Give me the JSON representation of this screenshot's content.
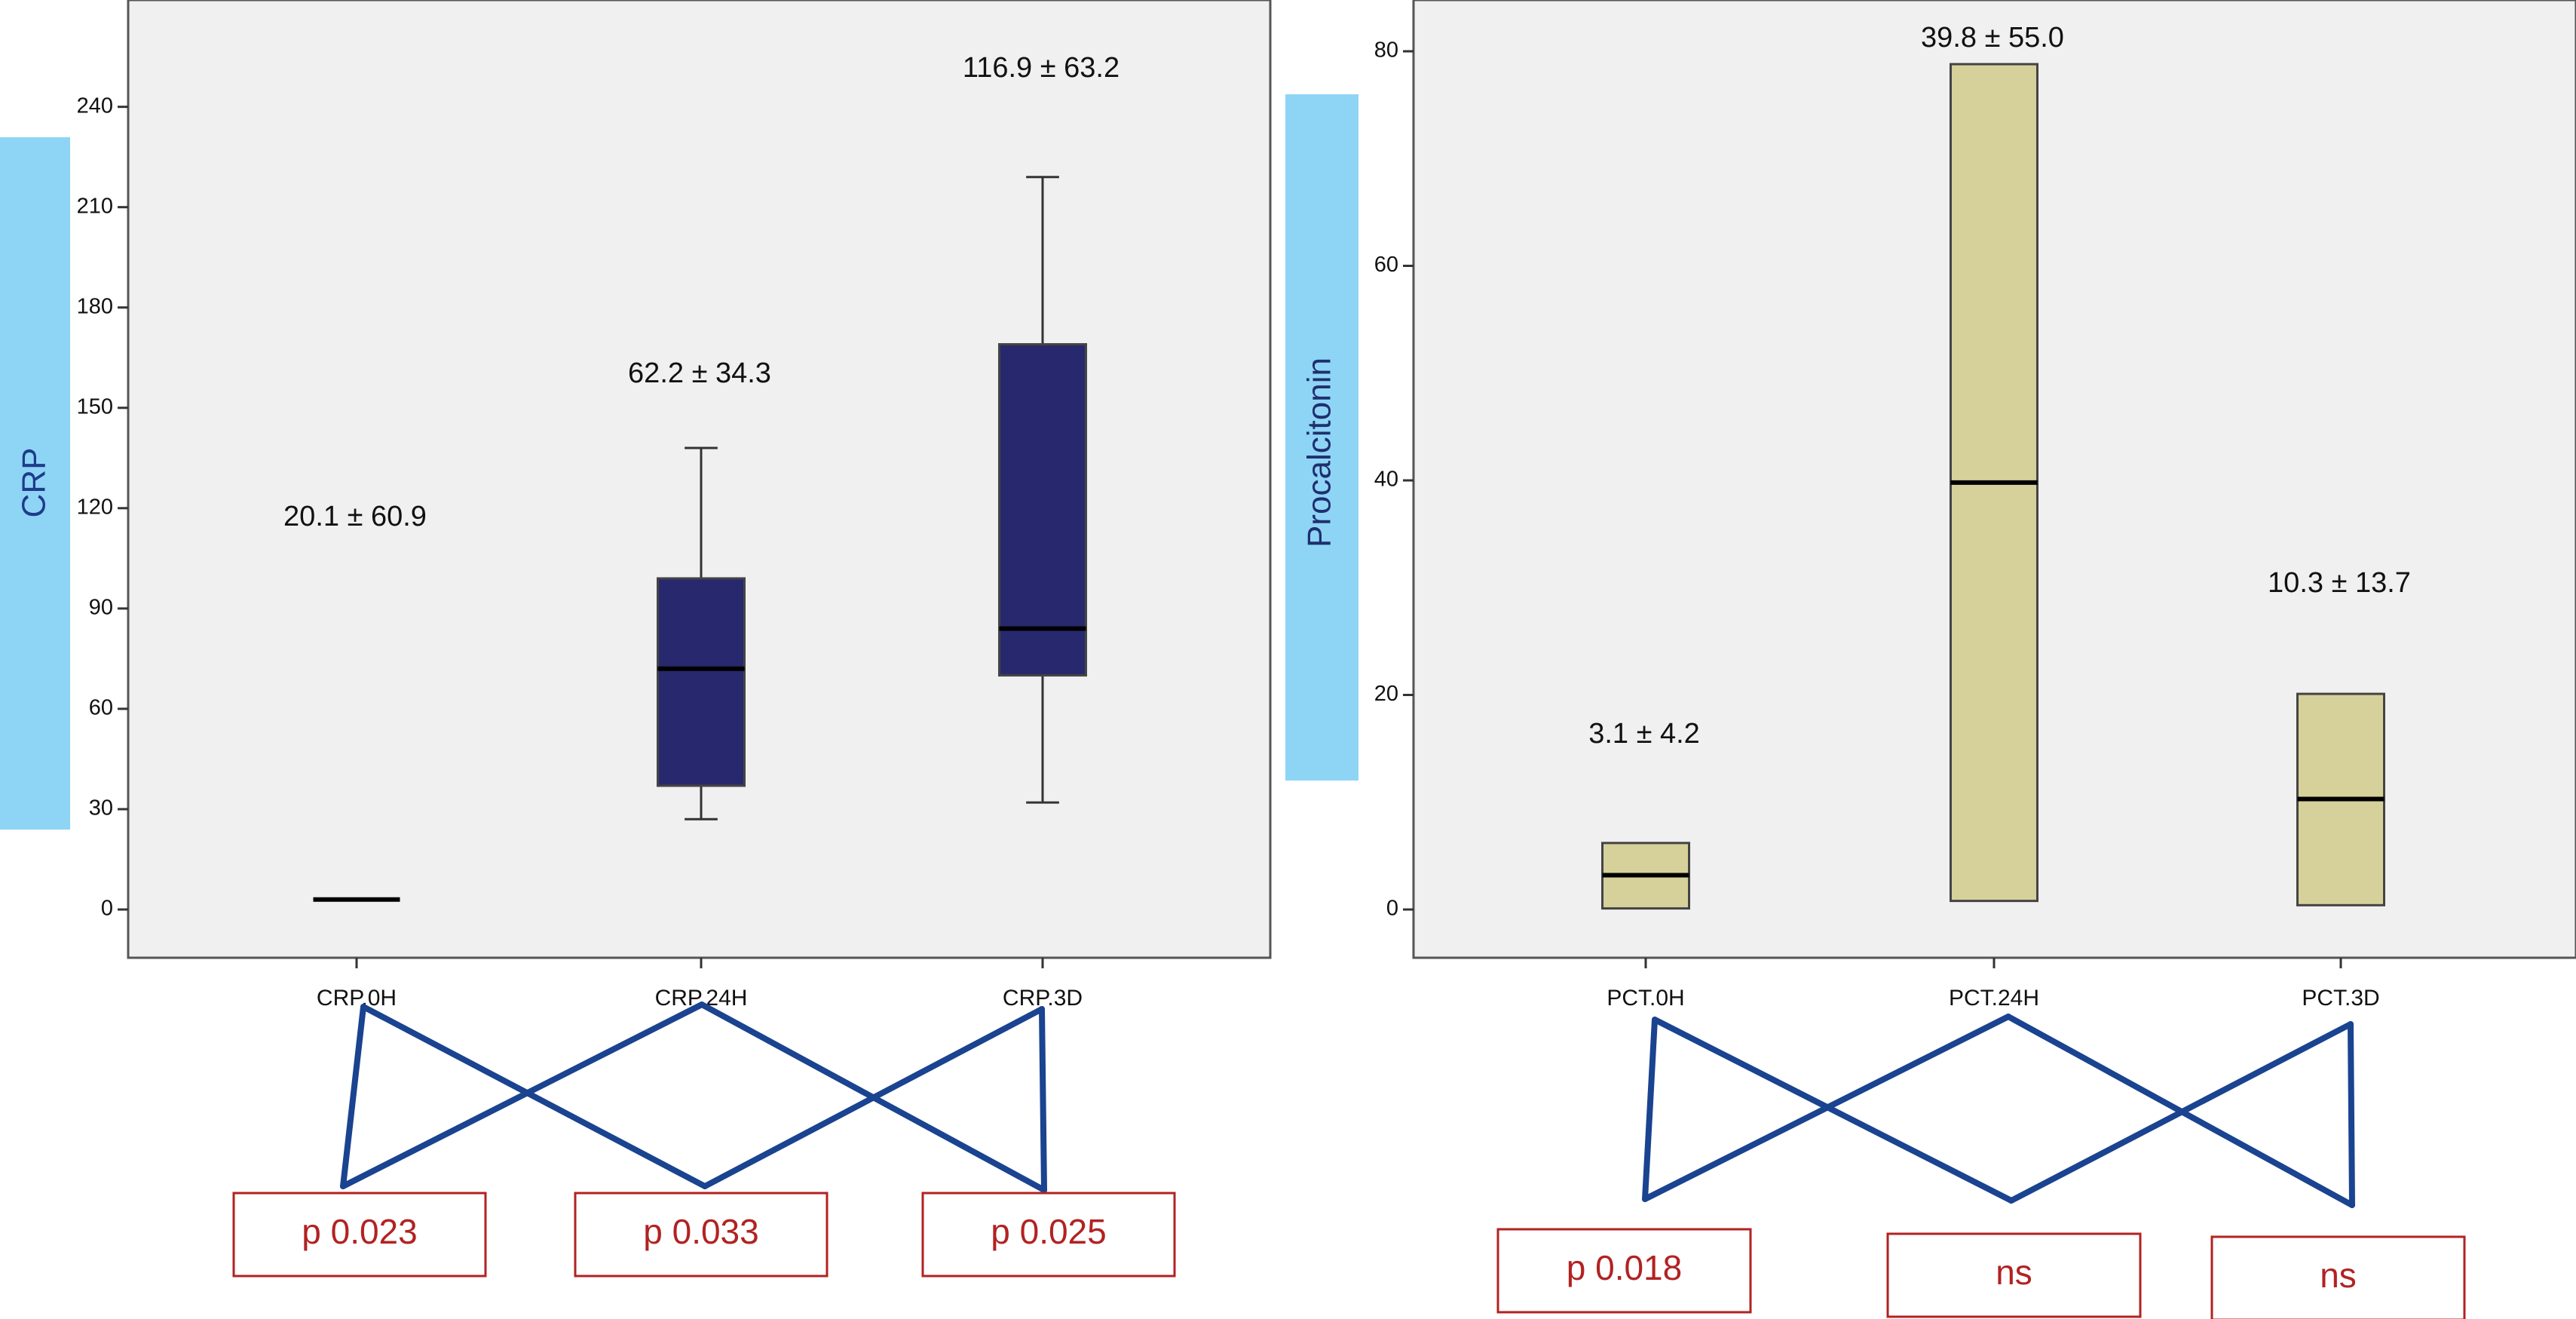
{
  "colors": {
    "plot_bg": "#f0f0f0",
    "frame": "#555555",
    "crp_box": "#28286e",
    "pct_box": "#d6d19a",
    "ylabel_band": "#8ed5f5",
    "crp_ylabel_text": "#1f3b8c",
    "pct_ylabel_text": "#1f2f6e",
    "connector": "#1a4390",
    "pvalue_border": "#b22222",
    "pvalue_text": "#b22222",
    "text": "#111111"
  },
  "chart_data": [
    {
      "type": "box",
      "ylabel": "CRP",
      "ylim": [
        -10,
        240
      ],
      "yticks": [
        0,
        30,
        60,
        90,
        120,
        150,
        180,
        210,
        240
      ],
      "categories": [
        "CRP.0H",
        "CRP.24H",
        "CRP.3D"
      ],
      "boxes": [
        {
          "category": "CRP.0H",
          "whisker_low": 3,
          "q1": 3,
          "median": 3,
          "q3": 3,
          "whisker_high": 3
        },
        {
          "category": "CRP.24H",
          "whisker_low": 27,
          "q1": 37,
          "median": 72,
          "q3": 99,
          "whisker_high": 138
        },
        {
          "category": "CRP.3D",
          "whisker_low": 32,
          "q1": 70,
          "median": 84,
          "q3": 169,
          "whisker_high": 219
        }
      ],
      "annotations": [
        "20.1 ± 60.9",
        "62.2 ± 34.3",
        "116.9 ± 63.2"
      ],
      "comparisons": [
        {
          "label": "p 0.023"
        },
        {
          "label": "p 0.033"
        },
        {
          "label": "p 0.025"
        }
      ]
    },
    {
      "type": "box",
      "ylabel": "Procalcitonin",
      "ylim": [
        -4.5,
        85
      ],
      "yticks": [
        0,
        20,
        40,
        60,
        80
      ],
      "categories": [
        "PCT.0H",
        "PCT.24H",
        "PCT.3D"
      ],
      "boxes": [
        {
          "category": "PCT.0H",
          "whisker_low": 0.1,
          "q1": 0.1,
          "median": 3.2,
          "q3": 6.2,
          "whisker_high": 6.2
        },
        {
          "category": "PCT.24H",
          "whisker_low": 0.8,
          "q1": 0.8,
          "median": 39.8,
          "q3": 78.8,
          "whisker_high": 78.8
        },
        {
          "category": "PCT.3D",
          "whisker_low": 0.4,
          "q1": 0.4,
          "median": 10.3,
          "q3": 20.1,
          "whisker_high": 20.1
        }
      ],
      "annotations": [
        "3.1 ± 4.2",
        "39.8 ± 55.0",
        "10.3 ± 13.7"
      ],
      "comparisons": [
        {
          "label": "p 0.018"
        },
        {
          "label": "ns"
        },
        {
          "label": "ns"
        }
      ]
    }
  ]
}
